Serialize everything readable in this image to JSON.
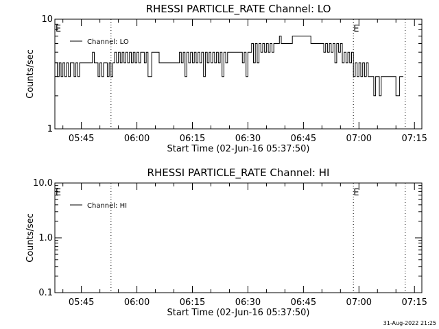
{
  "chart_data": [
    {
      "type": "line",
      "title": "RHESSI PARTICLE_RATE Channel: LO",
      "xlabel": "Start Time (02-Jun-16 05:37:50)",
      "ylabel": "Counts/sec",
      "yscale": "log",
      "ylim": [
        1,
        10
      ],
      "yticks": [
        "1",
        "10"
      ],
      "xlim": [
        "05:37:50",
        "07:17:00"
      ],
      "xticks": [
        "05:45",
        "06:00",
        "06:15",
        "06:30",
        "06:45",
        "07:00",
        "07:15"
      ],
      "event_lines": [
        "05:53:00",
        "06:58:30",
        "07:12:30"
      ],
      "event_labels": [
        {
          "text": "E",
          "at": "05:38:00"
        },
        {
          "text": "E",
          "at": "06:58:30"
        }
      ],
      "grid": false,
      "legend": "top-left",
      "series": [
        {
          "name": "Channel: LO",
          "color": "#000000",
          "x": [
            "05:38",
            "05:38:30",
            "05:39",
            "05:39:30",
            "05:40",
            "05:40:30",
            "05:41",
            "05:41:30",
            "05:42",
            "05:42:30",
            "05:43",
            "05:43:30",
            "05:44",
            "05:44:30",
            "05:45",
            "05:46",
            "05:47",
            "05:48",
            "05:48:30",
            "05:49",
            "05:49:30",
            "05:50",
            "05:50:30",
            "05:51",
            "05:51:30",
            "05:52",
            "05:52:30",
            "05:53",
            "05:53:30",
            "05:54",
            "05:54:30",
            "05:55",
            "05:55:30",
            "05:56",
            "05:56:30",
            "05:57",
            "05:57:30",
            "05:58",
            "05:58:30",
            "05:59",
            "05:59:30",
            "06:00",
            "06:00:30",
            "06:01",
            "06:01:30",
            "06:02",
            "06:02:30",
            "06:03",
            "06:04",
            "06:05",
            "06:06",
            "06:07",
            "06:08",
            "06:09",
            "06:10",
            "06:11",
            "06:11:30",
            "06:12",
            "06:12:30",
            "06:13",
            "06:13:30",
            "06:14",
            "06:14:30",
            "06:15",
            "06:15:30",
            "06:16",
            "06:16:30",
            "06:17",
            "06:17:30",
            "06:18",
            "06:18:30",
            "06:19",
            "06:19:30",
            "06:20",
            "06:20:30",
            "06:21",
            "06:21:30",
            "06:22",
            "06:22:30",
            "06:23",
            "06:23:30",
            "06:24",
            "06:24:30",
            "06:25",
            "06:26",
            "06:27",
            "06:28",
            "06:28:30",
            "06:29",
            "06:29:30",
            "06:30",
            "06:30:30",
            "06:31",
            "06:31:30",
            "06:32",
            "06:32:30",
            "06:33",
            "06:33:30",
            "06:34",
            "06:34:30",
            "06:35",
            "06:35:30",
            "06:36",
            "06:36:30",
            "06:37",
            "06:37:30",
            "06:38",
            "06:38:30",
            "06:39",
            "06:39:30",
            "06:40",
            "06:40:30",
            "06:41",
            "06:42",
            "06:43",
            "06:44",
            "06:45",
            "06:46",
            "06:46:30",
            "06:47",
            "06:47:30",
            "06:48",
            "06:48:30",
            "06:49",
            "06:49:30",
            "06:50",
            "06:50:30",
            "06:51",
            "06:51:30",
            "06:52",
            "06:52:30",
            "06:53",
            "06:53:30",
            "06:54",
            "06:54:30",
            "06:55",
            "06:55:30",
            "06:56",
            "06:56:30",
            "06:57",
            "06:57:30",
            "06:58",
            "06:58:30",
            "06:59",
            "06:59:30",
            "07:00",
            "07:00:30",
            "07:01",
            "07:01:30",
            "07:02",
            "07:02:30",
            "07:03",
            "07:03:30",
            "07:04",
            "07:04:30",
            "07:05",
            "07:05:30",
            "07:06",
            "07:07",
            "07:08",
            "07:08:30",
            "07:09",
            "07:10",
            "07:11",
            "07:12"
          ],
          "y": [
            4,
            3,
            4,
            3,
            4,
            3,
            4,
            3,
            4,
            4,
            3,
            4,
            3,
            4,
            4,
            4,
            4,
            5,
            4,
            4,
            3,
            4,
            3,
            4,
            4,
            3,
            4,
            3,
            4,
            5,
            4,
            5,
            4,
            5,
            4,
            5,
            4,
            5,
            4,
            5,
            4,
            5,
            4,
            5,
            5,
            4,
            5,
            3,
            5,
            5,
            4,
            4,
            4,
            4,
            4,
            4,
            5,
            4,
            5,
            3,
            5,
            4,
            5,
            4,
            5,
            4,
            5,
            4,
            5,
            3,
            5,
            4,
            5,
            4,
            5,
            4,
            5,
            4,
            5,
            3,
            5,
            4,
            5,
            5,
            5,
            5,
            5,
            4,
            5,
            3,
            5,
            5,
            6,
            4,
            6,
            4,
            6,
            5,
            6,
            5,
            6,
            5,
            6,
            5,
            6,
            6,
            6,
            7,
            6,
            6,
            6,
            6,
            6,
            7,
            7,
            7,
            7,
            7,
            7,
            6,
            6,
            6,
            6,
            6,
            6,
            6,
            5,
            6,
            5,
            6,
            5,
            6,
            4,
            6,
            5,
            6,
            4,
            5,
            4,
            5,
            4,
            5,
            3,
            4,
            3,
            4,
            3,
            4,
            3,
            4,
            3,
            3,
            3,
            2,
            3,
            3,
            2,
            3,
            3,
            3,
            3,
            3,
            2,
            3,
            3
          ]
        }
      ]
    },
    {
      "type": "line",
      "title": "RHESSI PARTICLE_RATE Channel: HI",
      "xlabel": "Start Time (02-Jun-16 05:37:50)",
      "ylabel": "Counts/sec",
      "yscale": "log",
      "ylim": [
        0.1,
        10
      ],
      "yticks": [
        "0.1",
        "1.0",
        "10.0"
      ],
      "xlim": [
        "05:37:50",
        "07:17:00"
      ],
      "xticks": [
        "05:45",
        "06:00",
        "06:15",
        "06:30",
        "06:45",
        "07:00",
        "07:15"
      ],
      "event_lines": [
        "05:53:00",
        "06:58:30",
        "07:12:30"
      ],
      "event_labels": [
        {
          "text": "E",
          "at": "05:38:00"
        },
        {
          "text": "E",
          "at": "06:58:30"
        }
      ],
      "grid": false,
      "legend": "top-left",
      "series": [
        {
          "name": "Channel: HI",
          "color": "#000000",
          "x": [],
          "y": []
        }
      ]
    }
  ],
  "footer": {
    "timestamp": "31-Aug-2022 21:25"
  }
}
